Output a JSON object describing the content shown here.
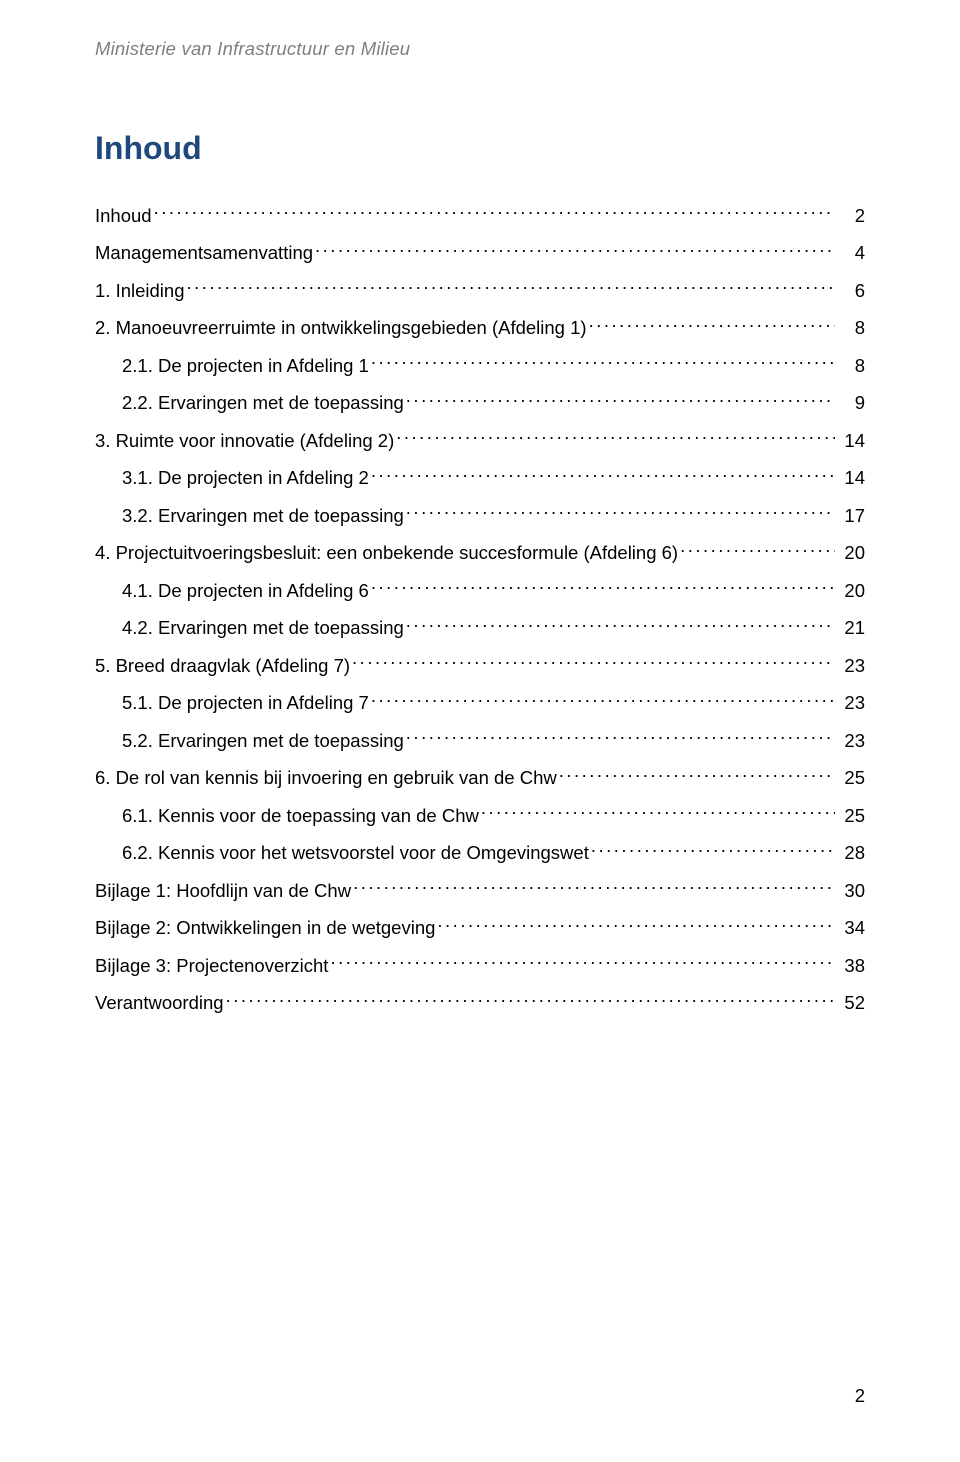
{
  "header": "Ministerie van Infrastructuur en Milieu",
  "title": "Inhoud",
  "page_number": "2",
  "colors": {
    "header_text": "#7f7f7f",
    "title_text": "#1f497d",
    "body_text": "#000000",
    "background": "#ffffff"
  },
  "typography": {
    "body_fontsize_pt": 14,
    "title_fontsize_pt": 24,
    "font_family": "Arial"
  },
  "toc": [
    {
      "label": "Inhoud",
      "page": "2",
      "indent": 0
    },
    {
      "label": "Managementsamenvatting",
      "page": "4",
      "indent": 0
    },
    {
      "label": "1.   Inleiding",
      "page": "6",
      "indent": 0
    },
    {
      "label": "2.   Manoeuvreerruimte in ontwikkelingsgebieden (Afdeling 1)",
      "page": "8",
      "indent": 0
    },
    {
      "label": "2.1.   De projecten in Afdeling 1",
      "page": " 8",
      "indent": 1
    },
    {
      "label": "2.2.   Ervaringen met de toepassing",
      "page": " 9",
      "indent": 1
    },
    {
      "label": "3.   Ruimte voor innovatie (Afdeling 2)",
      "page": "14",
      "indent": 0
    },
    {
      "label": "3.1.   De projecten in Afdeling 2",
      "page": " 14",
      "indent": 1
    },
    {
      "label": "3.2.   Ervaringen met de toepassing",
      "page": " 17",
      "indent": 1
    },
    {
      "label": "4.   Projectuitvoeringsbesluit: een onbekende succesformule  (Afdeling 6)",
      "page": "20",
      "indent": 0
    },
    {
      "label": "4.1.   De projecten in Afdeling 6",
      "page": " 20",
      "indent": 1
    },
    {
      "label": "4.2.   Ervaringen met de toepassing",
      "page": " 21",
      "indent": 1
    },
    {
      "label": "5.   Breed draagvlak (Afdeling 7)",
      "page": "23",
      "indent": 0
    },
    {
      "label": "5.1.   De projecten in Afdeling 7",
      "page": " 23",
      "indent": 1
    },
    {
      "label": "5.2.   Ervaringen met de toepassing",
      "page": " 23",
      "indent": 1
    },
    {
      "label": "6.   De rol van kennis bij invoering en gebruik van de Chw",
      "page": "25",
      "indent": 0
    },
    {
      "label": "6.1.   Kennis voor de toepassing van de Chw",
      "page": " 25",
      "indent": 1
    },
    {
      "label": "6.2.   Kennis voor het wetsvoorstel voor de Omgevingswet",
      "page": " 28",
      "indent": 1
    },
    {
      "label": "Bijlage 1: Hoofdlijn van de Chw",
      "page": "30",
      "indent": 0
    },
    {
      "label": "Bijlage 2: Ontwikkelingen in de wetgeving",
      "page": "34",
      "indent": 0
    },
    {
      "label": "Bijlage 3: Projectenoverzicht",
      "page": "38",
      "indent": 0
    },
    {
      "label": "Verantwoording",
      "page": "52",
      "indent": 0
    }
  ]
}
